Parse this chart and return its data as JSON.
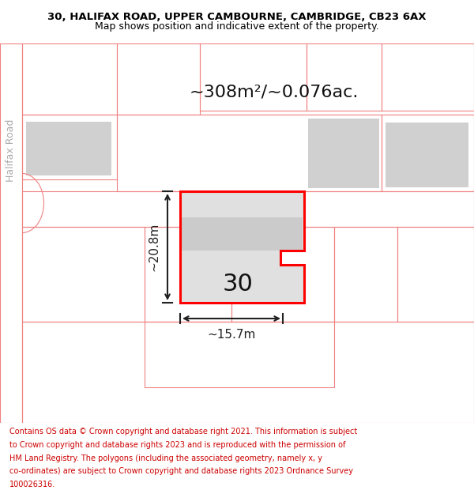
{
  "title_line1": "30, HALIFAX ROAD, UPPER CAMBOURNE, CAMBRIDGE, CB23 6AX",
  "title_line2": "Map shows position and indicative extent of the property.",
  "area_text": "~308m²/~0.076ac.",
  "dim_height": "~20.8m",
  "dim_width": "~15.7m",
  "plot_number": "30",
  "road_label": "Halifax Road",
  "footer_lines": [
    "Contains OS data © Crown copyright and database right 2021. This information is subject",
    "to Crown copyright and database rights 2023 and is reproduced with the permission of",
    "HM Land Registry. The polygons (including the associated geometry, namely x, y",
    "co-ordinates) are subject to Crown copyright and database rights 2023 Ordnance Survey",
    "100026316."
  ],
  "bg_color": "#ffffff",
  "map_bg": "#ffffff",
  "plot_fill": "#e0e0e0",
  "plot_border": "#ff0000",
  "outline_color": "#f08080",
  "dim_color": "#222222",
  "road_label_color": "#aaaaaa",
  "title_color": "#000000",
  "footer_color": "#cc0000",
  "building_fill": "#d0d0d0"
}
